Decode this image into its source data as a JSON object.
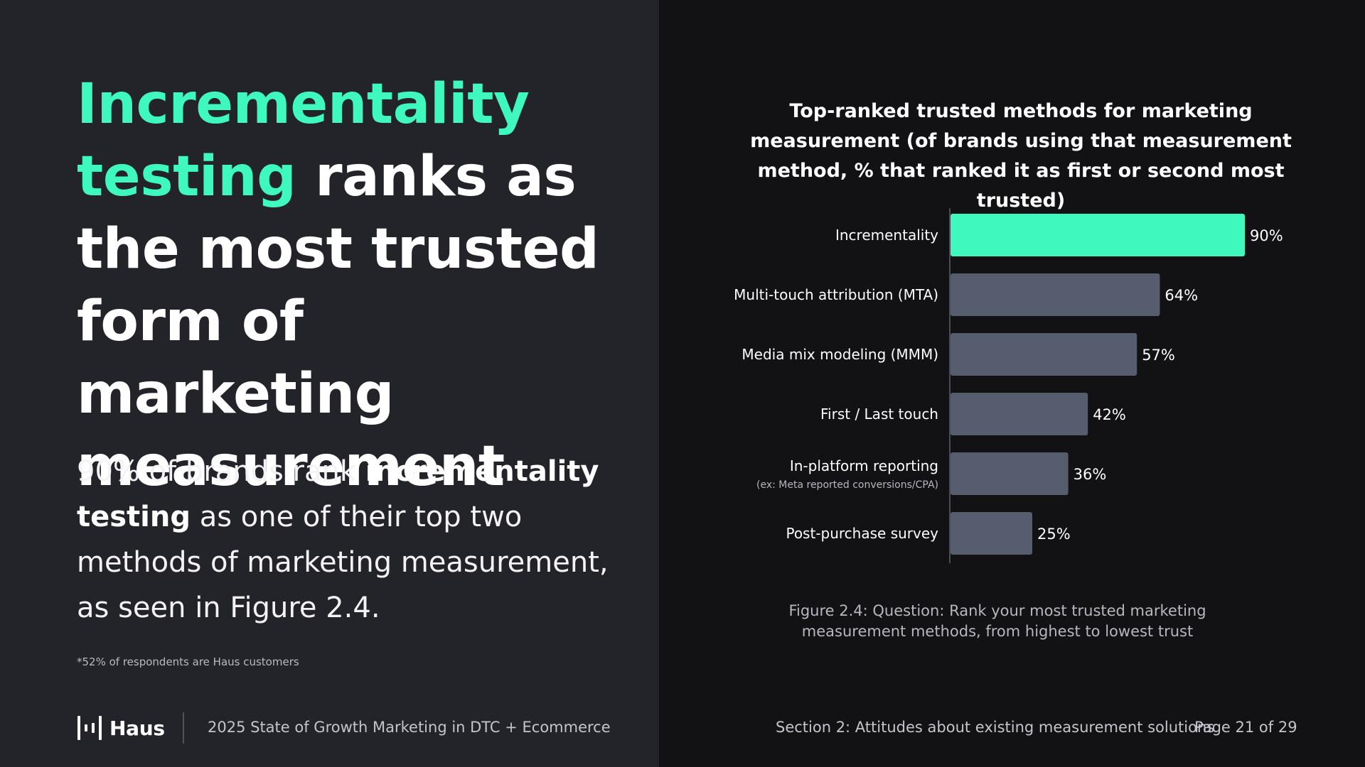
{
  "headline": {
    "accent": "Incrementality testing",
    "rest": " ranks as the most trusted form of marketing measurement"
  },
  "body": {
    "part1": "90% of brands rank ",
    "bold": "incrementality testing",
    "part2": " as one of their top two methods of marketing measurement, as seen in Figure 2.4."
  },
  "footnote": "*52% of respondents are Haus customers",
  "footer": {
    "logo_text": "Haus",
    "report_title": "2025 State of Growth Marketing in DTC + Ecommerce",
    "section": "Section 2: Attitudes about existing measurement solutions",
    "page": "Page 21 of 29"
  },
  "colors": {
    "accent": "#3ef8be",
    "bar_default": "#565d6e",
    "panel_left": "#232429",
    "panel_right": "#121215"
  },
  "chart_data": {
    "type": "bar",
    "orientation": "horizontal",
    "title": "Top-ranked trusted methods for marketing measurement (of brands using that measurement method, % that ranked it as first or second most trusted)",
    "categories": [
      "Incrementality",
      "Multi-touch attribution (MTA)",
      "Media mix modeling (MMM)",
      "First / Last touch",
      "In-platform reporting",
      "Post-purchase survey"
    ],
    "sublabels": [
      "",
      "",
      "",
      "",
      "(ex: Meta reported conversions/CPA)",
      ""
    ],
    "values": [
      90,
      64,
      57,
      42,
      36,
      25
    ],
    "value_labels": [
      "90%",
      "64%",
      "57%",
      "42%",
      "36%",
      "25%"
    ],
    "highlight_index": 0,
    "xlim": [
      0,
      100
    ],
    "xlabel": "",
    "ylabel": "",
    "grid": false,
    "legend": "none"
  },
  "caption": "Figure 2.4: Question: Rank your most trusted marketing measurement methods, from highest to lowest trust"
}
